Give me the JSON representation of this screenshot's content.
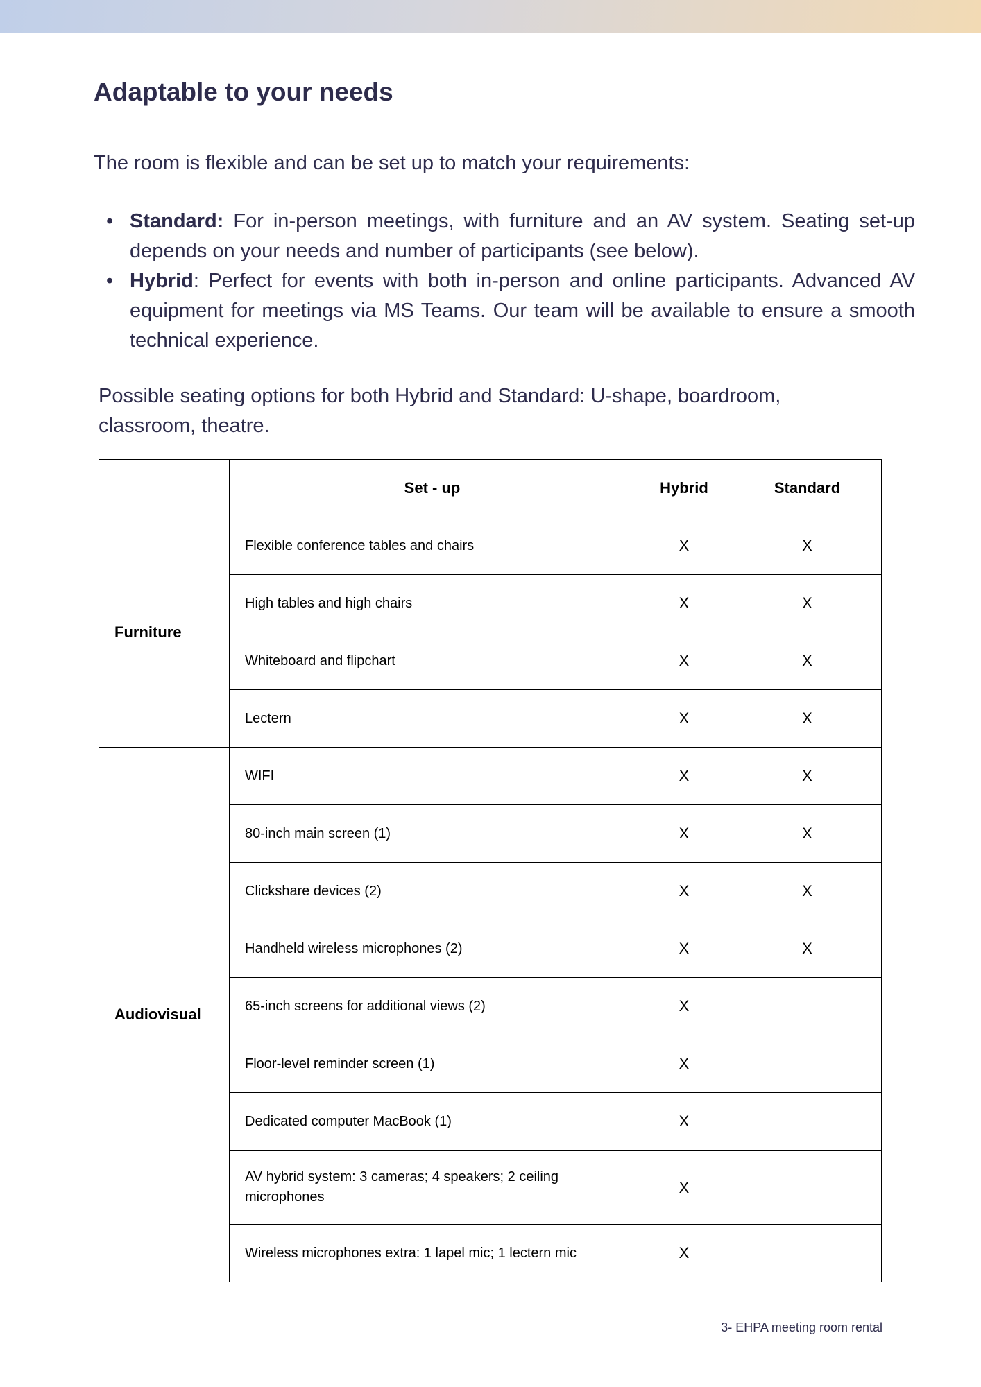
{
  "header_gradient": {
    "from": "#c0cfe9",
    "to": "#f2dab4"
  },
  "title": "Adaptable to your needs",
  "intro": "The room is flexible and can be set up to match your requirements:",
  "bullets": [
    {
      "term": "Standard:",
      "text": " For in-person meetings, with furniture and an AV system. Seating set-up depends on your needs and number of participants (see below)."
    },
    {
      "term": "Hybrid",
      "text": ": Perfect for events with both in-person and online participants. Advanced AV equipment for meetings via MS Teams. Our team will be available to ensure a smooth technical experience."
    }
  ],
  "seating": "Possible seating options for both Hybrid and Standard: U-shape, boardroom, classroom, theatre.",
  "table": {
    "headers": [
      "",
      "Set - up",
      "Hybrid",
      "Standard"
    ],
    "groups": [
      {
        "label": "Furniture",
        "rows": [
          {
            "item": "Flexible conference tables and chairs",
            "hybrid": "X",
            "standard": "X"
          },
          {
            "item": "High tables and high chairs",
            "hybrid": "X",
            "standard": "X"
          },
          {
            "item": "Whiteboard and flipchart",
            "hybrid": "X",
            "standard": "X"
          },
          {
            "item": "Lectern",
            "hybrid": "X",
            "standard": "X"
          }
        ]
      },
      {
        "label": "Audiovisual",
        "rows": [
          {
            "item": "WIFI",
            "hybrid": "X",
            "standard": "X"
          },
          {
            "item": "80-inch main screen (1)",
            "hybrid": "X",
            "standard": "X"
          },
          {
            "item": "Clickshare devices (2)",
            "hybrid": "X",
            "standard": "X"
          },
          {
            "item": "Handheld wireless microphones (2)",
            "hybrid": "X",
            "standard": "X"
          },
          {
            "item": "65-inch screens for additional views (2)",
            "hybrid": "X",
            "standard": ""
          },
          {
            "item": "Floor-level reminder screen (1)",
            "hybrid": "X",
            "standard": ""
          },
          {
            "item": "Dedicated computer MacBook (1)",
            "hybrid": "X",
            "standard": ""
          },
          {
            "item": "AV hybrid system: 3 cameras; 4 speakers; 2 ceiling microphones",
            "hybrid": "X",
            "standard": ""
          },
          {
            "item": "Wireless microphones extra: 1 lapel mic; 1 lectern mic",
            "hybrid": "X",
            "standard": ""
          }
        ]
      }
    ]
  },
  "footer": "3- EHPA meeting room rental"
}
